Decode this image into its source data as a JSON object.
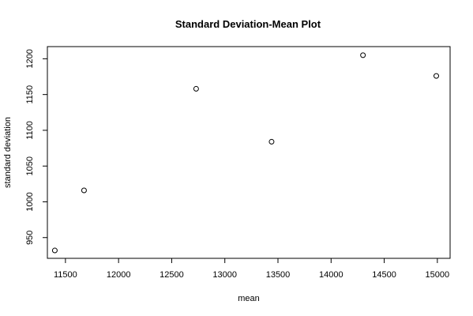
{
  "chart_data": {
    "type": "scatter",
    "title": "Standard Deviation-Mean Plot",
    "xlabel": "mean",
    "ylabel": "standard deviation",
    "xlim": [
      11330,
      15120
    ],
    "ylim": [
      921,
      1217
    ],
    "x_ticks": [
      11500,
      12000,
      12500,
      13000,
      13500,
      14000,
      14500,
      15000
    ],
    "y_ticks": [
      950,
      1000,
      1050,
      1100,
      1150,
      1200
    ],
    "grid": false,
    "points": [
      {
        "x": 11400,
        "y": 932
      },
      {
        "x": 11675,
        "y": 1016
      },
      {
        "x": 12730,
        "y": 1158
      },
      {
        "x": 13440,
        "y": 1084
      },
      {
        "x": 14300,
        "y": 1205
      },
      {
        "x": 14990,
        "y": 1176
      }
    ]
  }
}
